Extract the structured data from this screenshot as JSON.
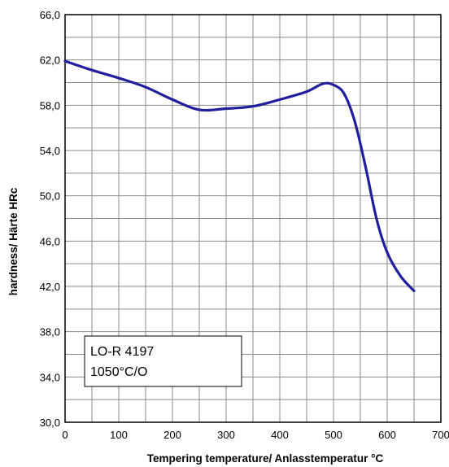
{
  "chart_data": {
    "type": "line",
    "xlabel": "Tempering temperature/ Anlasstemperatur °C",
    "ylabel": "hardness/ Härte HRc",
    "xlim": [
      0,
      700
    ],
    "ylim": [
      30,
      66
    ],
    "x_ticks": [
      "0",
      "100",
      "200",
      "300",
      "400",
      "500",
      "600",
      "700"
    ],
    "y_ticks": [
      "30,0",
      "34,0",
      "38,0",
      "42,0",
      "46,0",
      "50,0",
      "54,0",
      "58,0",
      "62,0",
      "66,0"
    ],
    "grid": true,
    "legend_lines": [
      "LO-R 4197",
      "1050°C/O"
    ],
    "series": [
      {
        "color": "#1f1f9e",
        "points": [
          [
            0,
            61.9
          ],
          [
            50,
            61.1
          ],
          [
            100,
            60.4
          ],
          [
            150,
            59.6
          ],
          [
            200,
            58.5
          ],
          [
            250,
            57.6
          ],
          [
            300,
            57.7
          ],
          [
            350,
            57.9
          ],
          [
            400,
            58.5
          ],
          [
            450,
            59.2
          ],
          [
            480,
            59.9
          ],
          [
            500,
            59.8
          ],
          [
            520,
            59.0
          ],
          [
            540,
            56.5
          ],
          [
            560,
            52.5
          ],
          [
            580,
            48.0
          ],
          [
            600,
            45.0
          ],
          [
            625,
            42.9
          ],
          [
            650,
            41.6
          ]
        ]
      }
    ]
  }
}
